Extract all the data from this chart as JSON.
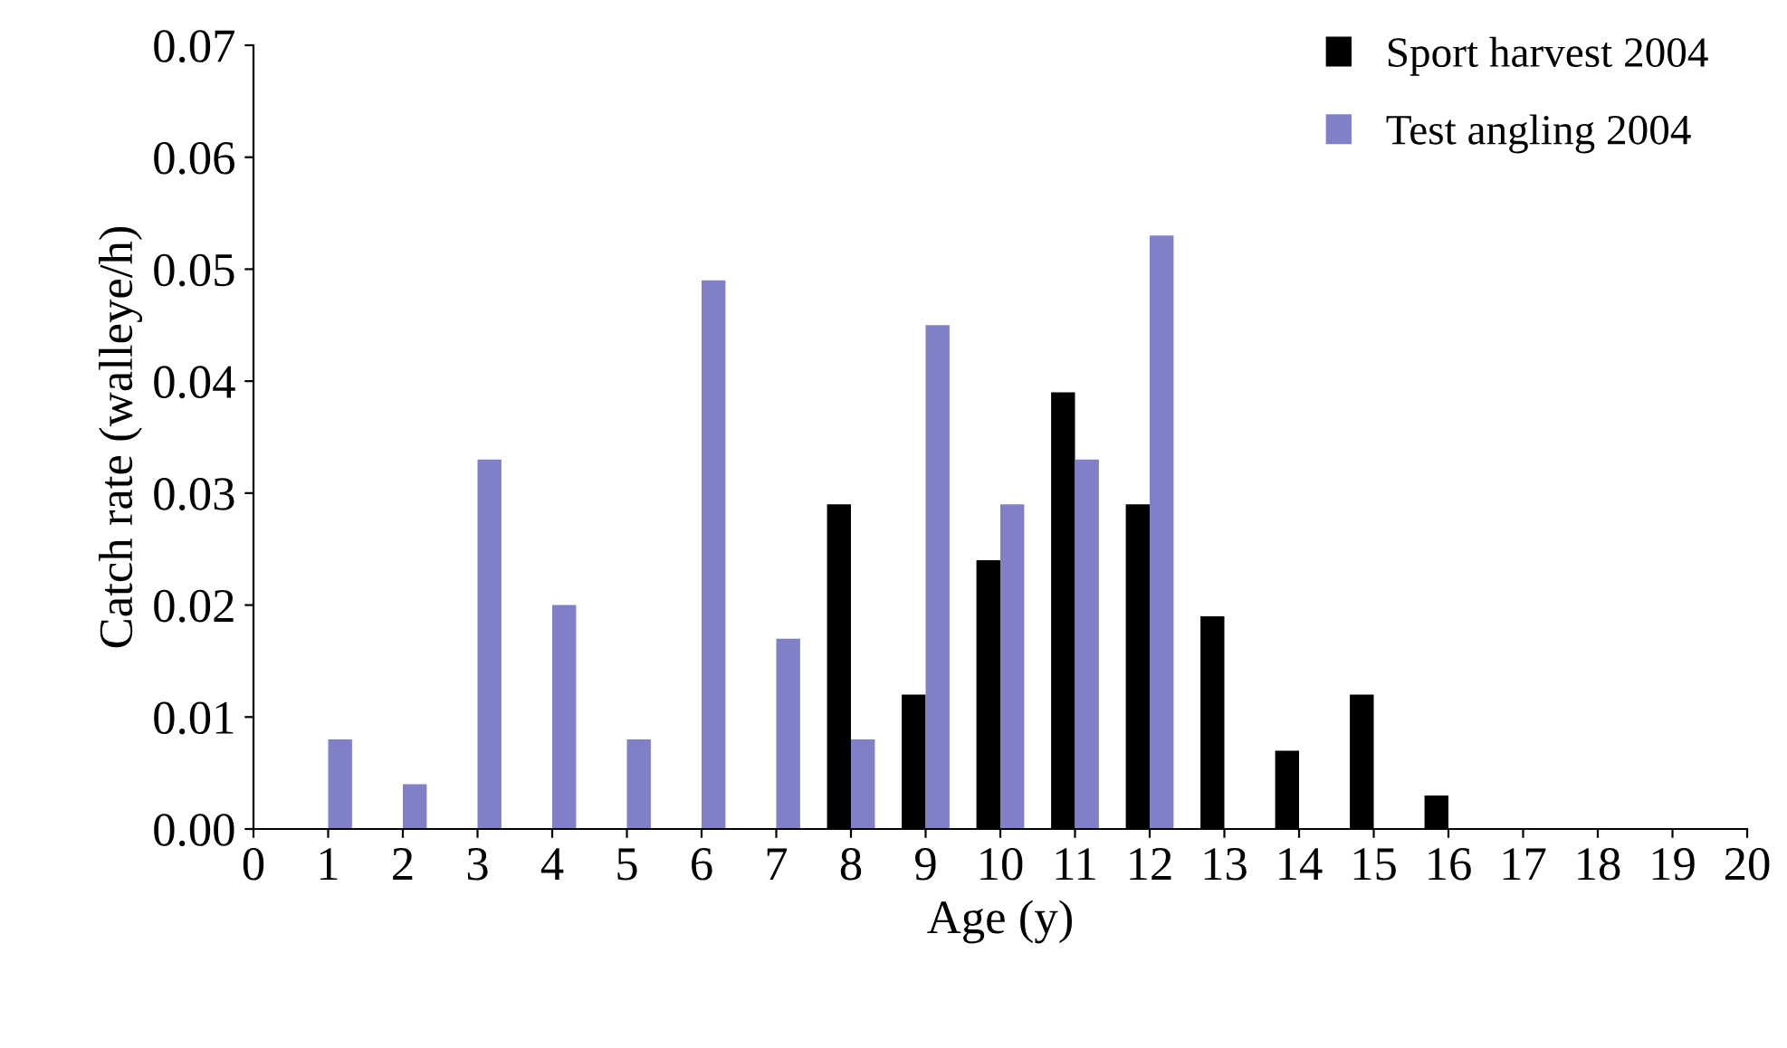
{
  "chart_data": {
    "type": "bar",
    "xlabel": "Age (y)",
    "ylabel": "Catch rate (walleye/h)",
    "x": [
      1,
      2,
      3,
      4,
      5,
      6,
      7,
      8,
      9,
      10,
      11,
      12,
      13,
      14,
      15,
      16
    ],
    "series": [
      {
        "name": "Sport harvest 2004",
        "color": "#000000",
        "values": [
          null,
          null,
          null,
          null,
          null,
          null,
          null,
          0.029,
          0.012,
          0.024,
          0.039,
          0.029,
          0.019,
          0.007,
          0.012,
          0.003
        ]
      },
      {
        "name": "Test angling 2004",
        "color": "#8080c8",
        "values": [
          0.008,
          0.004,
          0.033,
          0.02,
          0.008,
          0.049,
          0.017,
          0.008,
          0.045,
          0.029,
          0.033,
          0.053,
          null,
          null,
          null,
          null
        ]
      }
    ],
    "xlim": [
      0,
      20
    ],
    "xticks": [
      0,
      1,
      2,
      3,
      4,
      5,
      6,
      7,
      8,
      9,
      10,
      11,
      12,
      13,
      14,
      15,
      16,
      17,
      18,
      19,
      20
    ],
    "ylim": [
      0,
      0.07
    ],
    "yticks": [
      {
        "value": 0,
        "label": "0.00"
      },
      {
        "value": 0.01,
        "label": "0.01"
      },
      {
        "value": 0.02,
        "label": "0.02"
      },
      {
        "value": 0.03,
        "label": "0.03"
      },
      {
        "value": 0.04,
        "label": "0.04"
      },
      {
        "value": 0.05,
        "label": "0.05"
      },
      {
        "value": 0.06,
        "label": "0.06"
      },
      {
        "value": 0.07,
        "label": "0.07"
      }
    ],
    "grid": false,
    "legend": "top right"
  }
}
